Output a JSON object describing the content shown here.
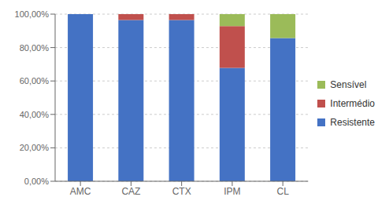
{
  "chart_data": {
    "type": "bar",
    "stacked": true,
    "categories": [
      "AMC",
      "CAZ",
      "CTX",
      "IPM",
      "CL"
    ],
    "series": [
      {
        "name": "Resistente",
        "color": "#4472C4",
        "values": [
          100.0,
          96.43,
          96.43,
          67.86,
          85.71
        ]
      },
      {
        "name": "Intermédio",
        "color": "#C0504D",
        "values": [
          0.0,
          3.57,
          3.57,
          25.0,
          0.0
        ]
      },
      {
        "name": "Sensível",
        "color": "#9BBB59",
        "values": [
          0.0,
          0.0,
          0.0,
          7.14,
          14.29
        ]
      }
    ],
    "ylim": [
      0,
      100
    ],
    "yticks": [
      {
        "value": 0,
        "label": "0,00%"
      },
      {
        "value": 20,
        "label": "20,00%"
      },
      {
        "value": 40,
        "label": "40,00%"
      },
      {
        "value": 60,
        "label": "60,00%"
      },
      {
        "value": 80,
        "label": "80,00%"
      },
      {
        "value": 100,
        "label": "100,00%"
      }
    ],
    "grid": true,
    "legend": "right"
  }
}
